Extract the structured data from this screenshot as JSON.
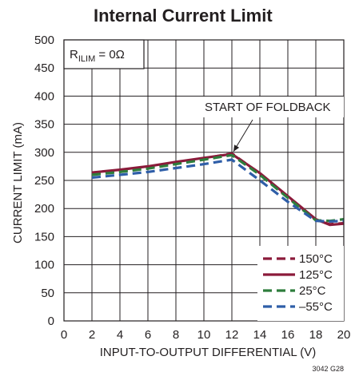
{
  "chart_data": {
    "type": "line",
    "title": "Internal Current Limit",
    "xlabel": "INPUT-TO-OUTPUT DIFFERENTIAL (V)",
    "ylabel": "CURRENT LIMIT (mA)",
    "xlim": [
      0,
      20
    ],
    "ylim": [
      0,
      500
    ],
    "xticks": [
      0,
      2,
      4,
      6,
      8,
      10,
      12,
      14,
      16,
      18,
      20
    ],
    "yticks": [
      0,
      50,
      100,
      150,
      200,
      250,
      300,
      350,
      400,
      450,
      500
    ],
    "grid": true,
    "legend_position": "bottom-right",
    "condition": {
      "prefix": "R",
      "subscript": "ILIM",
      "suffix": " = 0Ω"
    },
    "annotation": {
      "text": "START OF FOLDBACK",
      "x": 12,
      "y": 297
    },
    "figure_id": "3042 G28",
    "series": [
      {
        "name": "150°C",
        "color": "#8b1a3a",
        "dash": "dash",
        "x": [
          2,
          4,
          6,
          8,
          10,
          12,
          14,
          16,
          18,
          19,
          20
        ],
        "y": [
          262,
          267,
          273,
          281,
          289,
          298,
          262,
          220,
          180,
          172,
          174
        ]
      },
      {
        "name": "125°C",
        "color": "#8b1a3a",
        "dash": "solid",
        "x": [
          2,
          4,
          6,
          8,
          10,
          12,
          14,
          16,
          18,
          19,
          20
        ],
        "y": [
          264,
          269,
          275,
          283,
          290,
          297,
          263,
          222,
          181,
          171,
          173
        ]
      },
      {
        "name": "25°C",
        "color": "#2e7d3c",
        "dash": "dash",
        "x": [
          2,
          4,
          6,
          8,
          10,
          12,
          14,
          16,
          18,
          19,
          20
        ],
        "y": [
          260,
          265,
          271,
          279,
          287,
          295,
          260,
          219,
          179,
          178,
          181
        ]
      },
      {
        "name": "–55°C",
        "color": "#2f5ea8",
        "dash": "dash",
        "x": [
          2,
          4,
          6,
          8,
          10,
          12,
          14,
          16,
          18,
          19,
          20
        ],
        "y": [
          255,
          260,
          265,
          272,
          279,
          287,
          250,
          212,
          178,
          177,
          178
        ]
      }
    ]
  }
}
